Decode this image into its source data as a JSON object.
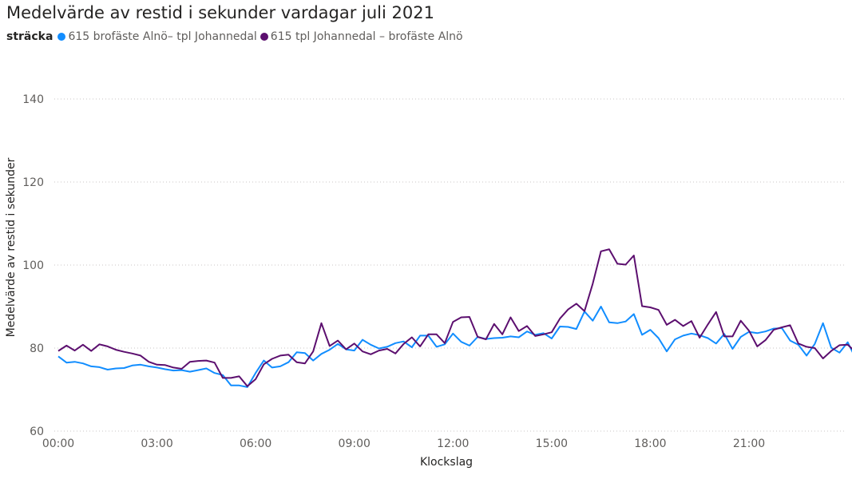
{
  "title": "Medelvärde av restid i sekunder vardagar juli 2021",
  "legend": {
    "title": "sträcka",
    "items": [
      {
        "label": "615 brofäste Alnö– tpl Johannedal",
        "color": "#118dff"
      },
      {
        "label": "615 tpl Johannedal – brofäste Alnö",
        "color": "#5c0f6f"
      }
    ]
  },
  "chart_data": {
    "type": "line",
    "xlabel": "Klockslag",
    "ylabel": "Medelvärde av restid i sekunder",
    "xticks": [
      "00:00",
      "03:00",
      "06:00",
      "09:00",
      "12:00",
      "15:00",
      "18:00",
      "21:00"
    ],
    "yticks": [
      60,
      80,
      100,
      120,
      140
    ],
    "ylim": [
      60,
      140
    ],
    "x_interval_minutes": 15,
    "grid": true,
    "legend_position": "top-left",
    "series": [
      {
        "name": "615 brofäste Alnö– tpl Johannedal",
        "color": "#118dff",
        "values": [
          78.0,
          76.5,
          76.7,
          76.3,
          75.6,
          75.4,
          74.8,
          75.1,
          75.2,
          75.8,
          76.0,
          75.6,
          75.3,
          74.9,
          74.6,
          74.7,
          74.3,
          74.7,
          75.1,
          74.0,
          73.5,
          71.0,
          71.0,
          70.6,
          74.0,
          77.0,
          75.3,
          75.6,
          76.6,
          79.0,
          78.8,
          77.0,
          78.6,
          79.6,
          81.0,
          79.7,
          79.4,
          82.0,
          80.8,
          79.9,
          80.3,
          81.2,
          81.6,
          80.2,
          83.0,
          83.0,
          80.3,
          80.9,
          83.5,
          81.5,
          80.6,
          82.7,
          82.2,
          82.4,
          82.5,
          82.8,
          82.6,
          84.0,
          83.2,
          83.6,
          82.3,
          85.2,
          85.1,
          84.6,
          88.8,
          86.6,
          90.0,
          86.2,
          86.0,
          86.4,
          88.2,
          83.2,
          84.4,
          82.4,
          79.2,
          82.1,
          83.0,
          83.5,
          83.1,
          82.4,
          81.1,
          83.4,
          79.8,
          82.7,
          83.9,
          83.6,
          84.0,
          84.7,
          84.8,
          81.8,
          80.8,
          78.2,
          81.0,
          86.0,
          80.1,
          78.9,
          81.4,
          77.4,
          78.3
        ]
      },
      {
        "name": "615 tpl Johannedal – brofäste Alnö",
        "color": "#5c0f6f",
        "values": [
          79.3,
          80.6,
          79.4,
          80.8,
          79.3,
          80.9,
          80.4,
          79.6,
          79.1,
          78.7,
          78.2,
          76.7,
          76.0,
          75.9,
          75.3,
          75.0,
          76.7,
          76.9,
          77.0,
          76.5,
          72.8,
          72.8,
          73.2,
          70.8,
          72.5,
          76.1,
          77.4,
          78.2,
          78.4,
          76.6,
          76.3,
          79.2,
          86.0,
          80.5,
          81.8,
          79.7,
          81.1,
          79.2,
          78.5,
          79.4,
          79.8,
          78.7,
          81.0,
          82.6,
          80.4,
          83.3,
          83.3,
          81.2,
          86.3,
          87.4,
          87.5,
          82.7,
          82.1,
          85.8,
          83.3,
          87.4,
          84.1,
          85.3,
          82.9,
          83.3,
          83.8,
          87.1,
          89.3,
          90.7,
          88.9,
          95.5,
          103.3,
          103.8,
          100.3,
          100.1,
          102.3,
          90.1,
          89.8,
          89.2,
          85.6,
          86.8,
          85.3,
          86.5,
          82.5,
          85.7,
          88.7,
          82.8,
          82.8,
          86.6,
          84.2,
          80.4,
          81.9,
          84.4,
          85.0,
          85.5,
          81.1,
          80.3,
          80.0,
          77.5,
          79.3,
          80.7,
          80.8,
          79.0
        ]
      }
    ]
  }
}
